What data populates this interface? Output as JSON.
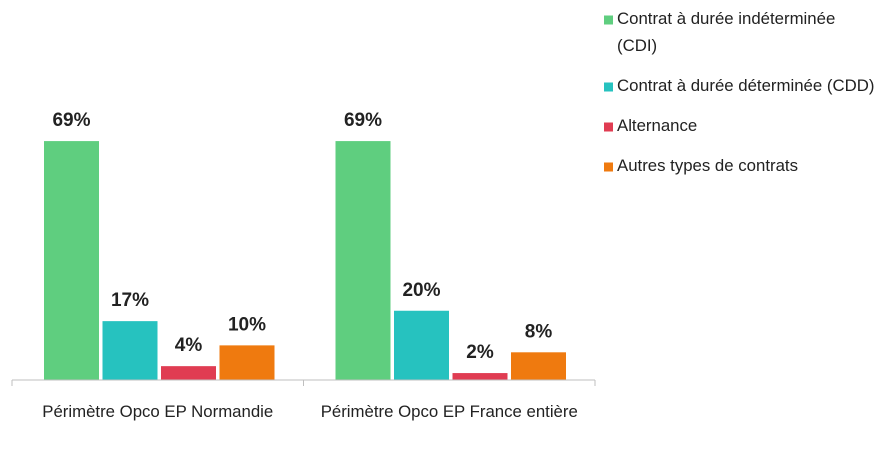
{
  "chart_data": {
    "type": "bar",
    "categories": [
      "Périmètre Opco EP Normandie",
      "Périmètre Opco EP France entière"
    ],
    "series": [
      {
        "name": "Contrat à durée indéterminée (CDI)",
        "color": "#5fce7f",
        "values": [
          69,
          69
        ],
        "value_labels": [
          "69%",
          "69%"
        ]
      },
      {
        "name": "Contrat à durée déterminée (CDD)",
        "color": "#26c2bf",
        "values": [
          17,
          20
        ],
        "value_labels": [
          "17%",
          "20%"
        ]
      },
      {
        "name": "Alternance",
        "color": "#e03c52",
        "values": [
          4,
          2
        ],
        "value_labels": [
          "4%",
          "2%"
        ]
      },
      {
        "name": "Autres types de contrats",
        "color": "#ef7a0f",
        "values": [
          10,
          8
        ],
        "value_labels": [
          "10%",
          "8%"
        ]
      }
    ],
    "ylim": [
      0,
      80
    ],
    "legend": "right"
  }
}
